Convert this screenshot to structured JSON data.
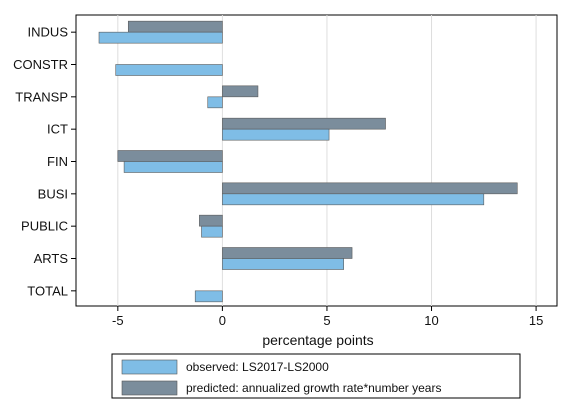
{
  "chart_data": {
    "type": "bar",
    "orientation": "horizontal",
    "categories": [
      "INDUS",
      "CONSTR",
      "TRANSP",
      "ICT",
      "FIN",
      "BUSI",
      "PUBLIC",
      "ARTS",
      "TOTAL"
    ],
    "series": [
      {
        "name": "observed: LS2017-LS2000",
        "color": "#7fbde6",
        "values": [
          -5.9,
          -5.1,
          -0.7,
          5.1,
          -4.7,
          12.5,
          -1.0,
          5.8,
          -1.3
        ]
      },
      {
        "name": "predicted: annualized growth rate*number years",
        "color": "#7b8d9c",
        "values": [
          -4.5,
          null,
          1.7,
          7.8,
          -5.0,
          14.1,
          -1.1,
          6.2,
          null
        ]
      }
    ],
    "xlabel": "percentage points",
    "xlim": [
      -7,
      16
    ],
    "xticks": [
      -5,
      0,
      5,
      10,
      15
    ],
    "grid": "vertical",
    "legend": "bottom"
  }
}
